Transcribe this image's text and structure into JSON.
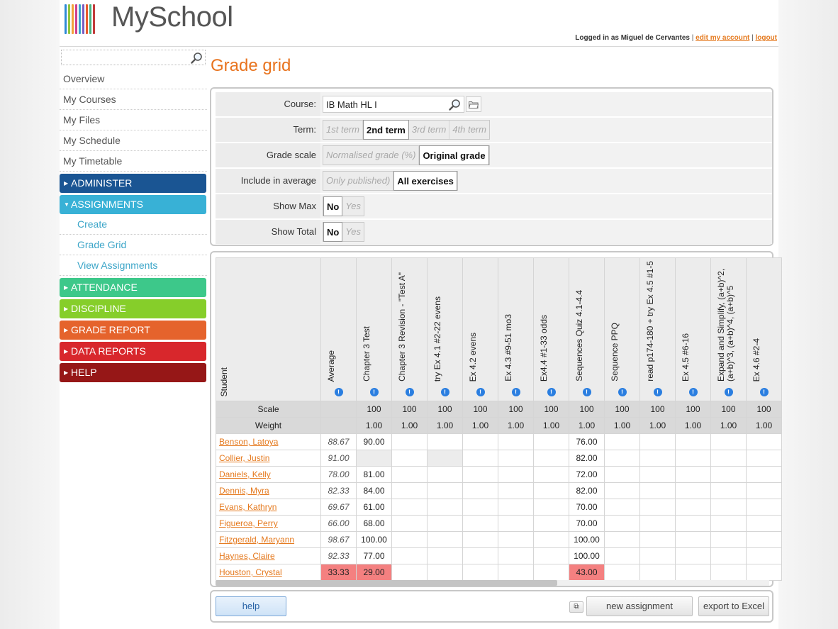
{
  "header": {
    "app_name": "MySchool",
    "logged_in_text": "Logged in as Miguel de Cervantes",
    "edit_account": "edit my account",
    "logout": "logout",
    "separator": "|",
    "logo_colors": [
      "#2e8bd6",
      "#8fc640",
      "#f2a23a",
      "#cf3f8e",
      "#3aa6cf",
      "#7b5cc1",
      "#e85a2c",
      "#45b380",
      "#c23b3b"
    ]
  },
  "sidebar": {
    "search_placeholder": "",
    "links": [
      "Overview",
      "My Courses",
      "My Files",
      "My Schedule",
      "My Timetable"
    ],
    "sections": [
      {
        "label": "ADMINISTER",
        "color": "#1a5593",
        "arrow": "▶"
      },
      {
        "label": "ASSIGNMENTS",
        "color": "#38b1d6",
        "arrow": "▼"
      },
      {
        "label": "ATTENDANCE",
        "color": "#3dc88a",
        "arrow": "▶"
      },
      {
        "label": "DISCIPLINE",
        "color": "#86ce2a",
        "arrow": "▶"
      },
      {
        "label": "GRADE REPORT",
        "color": "#e5632c",
        "arrow": "▶"
      },
      {
        "label": "DATA REPORTS",
        "color": "#d8272c",
        "arrow": "▶"
      },
      {
        "label": "HELP",
        "color": "#961717",
        "arrow": "▶"
      }
    ],
    "assignment_links": [
      "Create",
      "Grade Grid",
      "View Assignments"
    ]
  },
  "main": {
    "title": "Grade grid",
    "filters": {
      "course_label": "Course:",
      "course_value": "IB Math HL I",
      "term_label": "Term:",
      "terms": [
        "1st term",
        "2nd term",
        "3rd term",
        "4th term"
      ],
      "term_selected": 1,
      "scale_label": "Grade scale",
      "scales": [
        "Normalised grade (%)",
        "Original grade"
      ],
      "scale_selected": 1,
      "include_label": "Include in average",
      "includes": [
        "Only published)",
        "All exercises"
      ],
      "include_selected": 1,
      "showmax_label": "Show Max",
      "showmax_options": [
        "No",
        "Yes"
      ],
      "showmax_selected": 0,
      "showtotal_label": "Show Total",
      "showtotal_options": [
        "No",
        "Yes"
      ],
      "showtotal_selected": 0
    },
    "grid": {
      "student_header": "Student",
      "average_header": "Average",
      "info_glyph": "!",
      "scale_label": "Scale",
      "weight_label": "Weight",
      "columns": [
        {
          "name": "Chapter 3 Test",
          "scale": "100",
          "weight": "1.00"
        },
        {
          "name": "Chapter 3 Revision - \"Test A\"",
          "scale": "100",
          "weight": "1.00"
        },
        {
          "name": "try Ex 4.1 #2-22 evens",
          "scale": "100",
          "weight": "1.00"
        },
        {
          "name": "Ex 4.2 evens",
          "scale": "100",
          "weight": "1.00"
        },
        {
          "name": "Ex 4.3 #9-51 mo3",
          "scale": "100",
          "weight": "1.00"
        },
        {
          "name": "Ex4.4 #1-33 odds",
          "scale": "100",
          "weight": "1.00"
        },
        {
          "name": "Sequences Quiz 4.1-4.4",
          "scale": "100",
          "weight": "1.00"
        },
        {
          "name": "Sequence PPQ",
          "scale": "100",
          "weight": "1.00"
        },
        {
          "name": "read p174-180 + try Ex 4.5 #1-5",
          "scale": "100",
          "weight": "1.00"
        },
        {
          "name": "Ex 4.5 #6-16",
          "scale": "100",
          "weight": "1.00"
        },
        {
          "name": "Expand and Simplify, (a+b)^2, (a+b)^3, (a+b)^4, (a+b)^5",
          "scale": "100",
          "weight": "1.00"
        },
        {
          "name": "Ex 4.6 #2-4",
          "scale": "100",
          "weight": "1.00"
        }
      ],
      "students": [
        {
          "name": "Benson, Latoya",
          "average": "88.67",
          "grades": [
            "90.00",
            "",
            "",
            "",
            "",
            "",
            "76.00",
            "",
            "",
            "",
            "",
            ""
          ],
          "grey": [],
          "red": []
        },
        {
          "name": "Collier, Justin",
          "average": "91.00",
          "grades": [
            "",
            "",
            "",
            "",
            "",
            "",
            "82.00",
            "",
            "",
            "",
            "",
            ""
          ],
          "grey": [
            0,
            2
          ],
          "red": []
        },
        {
          "name": "Daniels, Kelly",
          "average": "78.00",
          "grades": [
            "81.00",
            "",
            "",
            "",
            "",
            "",
            "72.00",
            "",
            "",
            "",
            "",
            ""
          ],
          "grey": [],
          "red": []
        },
        {
          "name": "Dennis, Myra",
          "average": "82.33",
          "grades": [
            "84.00",
            "",
            "",
            "",
            "",
            "",
            "82.00",
            "",
            "",
            "",
            "",
            ""
          ],
          "grey": [],
          "red": []
        },
        {
          "name": "Evans, Kathryn",
          "average": "69.67",
          "grades": [
            "61.00",
            "",
            "",
            "",
            "",
            "",
            "70.00",
            "",
            "",
            "",
            "",
            ""
          ],
          "grey": [],
          "red": []
        },
        {
          "name": "Figueroa, Perry",
          "average": "66.00",
          "grades": [
            "68.00",
            "",
            "",
            "",
            "",
            "",
            "70.00",
            "",
            "",
            "",
            "",
            ""
          ],
          "grey": [],
          "red": []
        },
        {
          "name": "Fitzgerald, Maryann",
          "average": "98.67",
          "grades": [
            "100.00",
            "",
            "",
            "",
            "",
            "",
            "100.00",
            "",
            "",
            "",
            "",
            ""
          ],
          "grey": [],
          "red": []
        },
        {
          "name": "Haynes, Claire",
          "average": "92.33",
          "grades": [
            "77.00",
            "",
            "",
            "",
            "",
            "",
            "100.00",
            "",
            "",
            "",
            "",
            ""
          ],
          "grey": [],
          "red": []
        },
        {
          "name": "Houston, Crystal",
          "average": "33.33",
          "grades": [
            "29.00",
            "",
            "",
            "",
            "",
            "",
            "43.00",
            "",
            "",
            "",
            "",
            ""
          ],
          "grey": [],
          "red": [
            0,
            6
          ],
          "avg_red": true
        }
      ]
    },
    "footer": {
      "help": "help",
      "popout": "⧉",
      "new_assignment": "new assignment",
      "export": "export to Excel"
    }
  }
}
